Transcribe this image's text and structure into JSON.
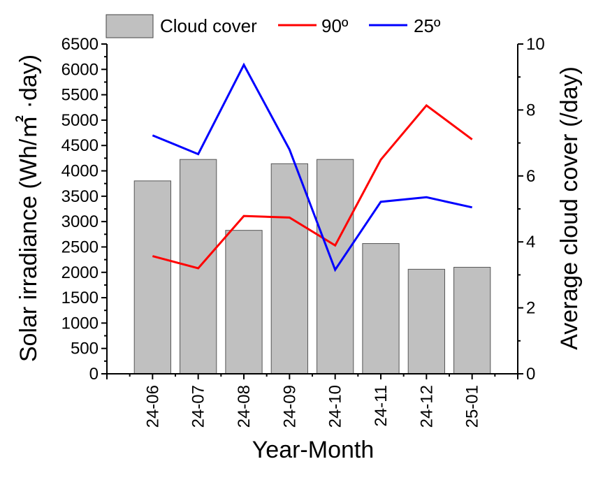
{
  "chart_data": {
    "type": "bar+line",
    "xlabel": "Year-Month",
    "ylabel_left": "Solar irradiance (Wh/㎡ ·day)",
    "ylabel_right": "Average cloud cover (/day)",
    "ylim_left": [
      0,
      6500
    ],
    "ylim_right": [
      0,
      10
    ],
    "categories": [
      "24-06",
      "24-07",
      "24-08",
      "24-09",
      "24-10",
      "24-11",
      "24-12",
      "25-01"
    ],
    "bars": {
      "name": "Cloud cover",
      "axis": "right",
      "color": "#c0c0c0",
      "values": [
        5.85,
        6.5,
        4.35,
        6.37,
        6.5,
        3.95,
        3.17,
        3.23
      ]
    },
    "series": [
      {
        "name": "90º",
        "axis": "left",
        "color": "#ff0000",
        "values": [
          2320,
          2080,
          3110,
          3080,
          2530,
          4220,
          5290,
          4620
        ]
      },
      {
        "name": "25º",
        "axis": "left",
        "color": "#0000ff",
        "values": [
          4700,
          4330,
          6090,
          4420,
          2050,
          3390,
          3480,
          3280
        ]
      }
    ],
    "left_ticks": [
      0,
      500,
      1000,
      1500,
      2000,
      2500,
      3000,
      3500,
      4000,
      4500,
      5000,
      5500,
      6000,
      6500
    ],
    "right_ticks": [
      0,
      2,
      4,
      6,
      8,
      10
    ],
    "legend_position": "top"
  }
}
